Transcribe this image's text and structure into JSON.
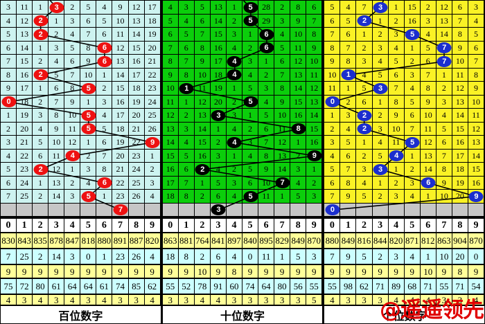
{
  "digits": [
    "0",
    "1",
    "2",
    "3",
    "4",
    "5",
    "6",
    "7",
    "8",
    "9"
  ],
  "colors": {
    "grid_line": "#000000",
    "stats_yellow": "#FFFF99",
    "stats_cyan": "#CCFFFF",
    "gray_row": "#C6C6C6",
    "watermark_red": "#E00000"
  },
  "watermark": "@遥遥领先",
  "panels": [
    {
      "footer_label": "百位数字",
      "theme": {
        "cell_bg": "#CDF3F0",
        "ball_color": "#EE1111",
        "stub_col": 3.1
      },
      "rows": [
        {
          "cells": [
            "3",
            "11",
            "1",
            "",
            "2",
            "5",
            "4",
            "9",
            "12",
            "17"
          ],
          "ball_col": 3,
          "ball_value": "3"
        },
        {
          "cells": [
            "4",
            "12",
            "",
            "1",
            "3",
            "6",
            "5",
            "10",
            "13",
            "18"
          ],
          "ball_col": 2,
          "ball_value": "2"
        },
        {
          "cells": [
            "5",
            "13",
            "",
            "2",
            "4",
            "7",
            "6",
            "11",
            "14",
            "19"
          ],
          "ball_col": 2,
          "ball_value": "2"
        },
        {
          "cells": [
            "6",
            "14",
            "1",
            "3",
            "5",
            "8",
            "",
            "12",
            "15",
            "20"
          ],
          "ball_col": 6,
          "ball_value": "6"
        },
        {
          "cells": [
            "7",
            "15",
            "2",
            "4",
            "6",
            "9",
            "",
            "13",
            "16",
            "21"
          ],
          "ball_col": 6,
          "ball_value": "6"
        },
        {
          "cells": [
            "8",
            "16",
            "",
            "5",
            "7",
            "10",
            "1",
            "14",
            "17",
            "22"
          ],
          "ball_col": 2,
          "ball_value": "2"
        },
        {
          "cells": [
            "9",
            "17",
            "1",
            "6",
            "8",
            "",
            "2",
            "15",
            "18",
            "23"
          ],
          "ball_col": 5,
          "ball_value": "5"
        },
        {
          "cells": [
            "",
            "18",
            "2",
            "7",
            "9",
            "1",
            "3",
            "16",
            "19",
            "24"
          ],
          "ball_col": 0,
          "ball_value": "0"
        },
        {
          "cells": [
            "1",
            "19",
            "3",
            "8",
            "10",
            "",
            "4",
            "17",
            "20",
            "25"
          ],
          "ball_col": 5,
          "ball_value": "5"
        },
        {
          "cells": [
            "2",
            "20",
            "4",
            "9",
            "11",
            "",
            "5",
            "18",
            "21",
            "26"
          ],
          "ball_col": 5,
          "ball_value": "5"
        },
        {
          "cells": [
            "3",
            "21",
            "5",
            "10",
            "12",
            "1",
            "6",
            "19",
            "22",
            ""
          ],
          "ball_col": 9,
          "ball_value": "9"
        },
        {
          "cells": [
            "4",
            "22",
            "6",
            "11",
            "",
            "2",
            "7",
            "20",
            "23",
            "1"
          ],
          "ball_col": 4,
          "ball_value": "4"
        },
        {
          "cells": [
            "5",
            "23",
            "",
            "12",
            "1",
            "3",
            "8",
            "21",
            "24",
            "2"
          ],
          "ball_col": 2,
          "ball_value": "2"
        },
        {
          "cells": [
            "6",
            "24",
            "1",
            "13",
            "2",
            "4",
            "",
            "22",
            "25",
            "3"
          ],
          "ball_col": 6,
          "ball_value": "6"
        },
        {
          "cells": [
            "7",
            "25",
            "2",
            "14",
            "3",
            "",
            "1",
            "23",
            "26",
            "4"
          ],
          "ball_col": 5,
          "ball_value": "5"
        }
      ],
      "gray_ball": {
        "col": 7,
        "value": "7"
      },
      "stats": [
        {
          "bg": "yellow",
          "values": [
            "830",
            "843",
            "835",
            "878",
            "847",
            "818",
            "880",
            "891",
            "887",
            "820"
          ]
        },
        {
          "bg": "cyan",
          "values": [
            "7",
            "25",
            "2",
            "14",
            "3",
            "0",
            "1",
            "23",
            "26",
            "4"
          ]
        },
        {
          "bg": "yellow",
          "values": [
            "9",
            "9",
            "9",
            "9",
            "9",
            "9",
            "9",
            "9",
            "9",
            "9"
          ]
        },
        {
          "bg": "cyan",
          "values": [
            "75",
            "72",
            "80",
            "61",
            "64",
            "64",
            "61",
            "74",
            "85",
            "62"
          ]
        },
        {
          "bg": "yellow",
          "values": [
            "4",
            "3",
            "4",
            "3",
            "4",
            "3",
            "4",
            "3",
            "3",
            "4"
          ]
        }
      ]
    },
    {
      "footer_label": "十位数字",
      "theme": {
        "cell_bg": "#0BCE0B",
        "ball_color": "#000000",
        "stub_col": 5.05
      },
      "rows": [
        {
          "cells": [
            "4",
            "3",
            "5",
            "13",
            "1",
            "",
            "28",
            "2",
            "8",
            "6"
          ],
          "ball_col": 5,
          "ball_value": "5"
        },
        {
          "cells": [
            "5",
            "4",
            "6",
            "14",
            "2",
            "",
            "29",
            "3",
            "9",
            "7"
          ],
          "ball_col": 5,
          "ball_value": "5"
        },
        {
          "cells": [
            "6",
            "5",
            "7",
            "15",
            "3",
            "1",
            "",
            "4",
            "10",
            "8"
          ],
          "ball_col": 6,
          "ball_value": "6"
        },
        {
          "cells": [
            "7",
            "6",
            "8",
            "16",
            "4",
            "2",
            "",
            "5",
            "11",
            "9"
          ],
          "ball_col": 6,
          "ball_value": "6"
        },
        {
          "cells": [
            "8",
            "7",
            "9",
            "17",
            "",
            "3",
            "1",
            "6",
            "12",
            "10"
          ],
          "ball_col": 4,
          "ball_value": "4"
        },
        {
          "cells": [
            "9",
            "8",
            "10",
            "18",
            "",
            "4",
            "2",
            "7",
            "13",
            "11"
          ],
          "ball_col": 4,
          "ball_value": "4"
        },
        {
          "cells": [
            "10",
            "",
            "11",
            "19",
            "1",
            "5",
            "3",
            "8",
            "14",
            "12"
          ],
          "ball_col": 1,
          "ball_value": "1"
        },
        {
          "cells": [
            "11",
            "1",
            "12",
            "20",
            "2",
            "",
            "4",
            "9",
            "15",
            "13"
          ],
          "ball_col": 5,
          "ball_value": "5"
        },
        {
          "cells": [
            "12",
            "2",
            "13",
            "",
            "3",
            "1",
            "5",
            "10",
            "16",
            "14"
          ],
          "ball_col": 3,
          "ball_value": "3"
        },
        {
          "cells": [
            "13",
            "3",
            "14",
            "1",
            "4",
            "2",
            "6",
            "11",
            "",
            "15"
          ],
          "ball_col": 8,
          "ball_value": "8"
        },
        {
          "cells": [
            "14",
            "4",
            "15",
            "2",
            "",
            "3",
            "7",
            "12",
            "1",
            "16"
          ],
          "ball_col": 4,
          "ball_value": "4"
        },
        {
          "cells": [
            "15",
            "5",
            "16",
            "3",
            "1",
            "4",
            "8",
            "13",
            "2",
            ""
          ],
          "ball_col": 9,
          "ball_value": "9"
        },
        {
          "cells": [
            "16",
            "6",
            "",
            "4",
            "2",
            "5",
            "9",
            "14",
            "3",
            "1"
          ],
          "ball_col": 2,
          "ball_value": "2"
        },
        {
          "cells": [
            "17",
            "7",
            "1",
            "5",
            "3",
            "6",
            "10",
            "",
            "4",
            "2"
          ],
          "ball_col": 7,
          "ball_value": "7"
        },
        {
          "cells": [
            "18",
            "8",
            "2",
            "6",
            "4",
            "",
            "11",
            "1",
            "5",
            "3"
          ],
          "ball_col": 5,
          "ball_value": "5"
        }
      ],
      "gray_ball": {
        "col": 3,
        "value": "3"
      },
      "stats": [
        {
          "bg": "yellow",
          "values": [
            "863",
            "881",
            "764",
            "841",
            "897",
            "840",
            "895",
            "829",
            "849",
            "870"
          ]
        },
        {
          "bg": "cyan",
          "values": [
            "18",
            "8",
            "2",
            "6",
            "4",
            "0",
            "11",
            "1",
            "5",
            "3"
          ]
        },
        {
          "bg": "yellow",
          "values": [
            "9",
            "9",
            "10",
            "9",
            "8",
            "9",
            "9",
            "9",
            "9",
            "9"
          ]
        },
        {
          "bg": "cyan",
          "values": [
            "55",
            "52",
            "78",
            "91",
            "60",
            "74",
            "64",
            "80",
            "56",
            "55"
          ]
        },
        {
          "bg": "yellow",
          "values": [
            "3",
            "3",
            "4",
            "4",
            "3",
            "3",
            "3",
            "3",
            "3",
            "5"
          ]
        }
      ]
    },
    {
      "footer_label": "个位数字",
      "theme": {
        "cell_bg": "#FAF225",
        "ball_color": "#1B2ECE",
        "stub_col": 3.7
      },
      "rows": [
        {
          "cells": [
            "5",
            "4",
            "7",
            "",
            "1",
            "15",
            "2",
            "12",
            "6",
            "3"
          ],
          "ball_col": 3,
          "ball_value": "3"
        },
        {
          "cells": [
            "6",
            "5",
            "",
            "1",
            "2",
            "16",
            "3",
            "13",
            "7",
            "4"
          ],
          "ball_col": 2,
          "ball_value": "2"
        },
        {
          "cells": [
            "7",
            "6",
            "1",
            "2",
            "3",
            "",
            "4",
            "14",
            "8",
            "5"
          ],
          "ball_col": 5,
          "ball_value": "5"
        },
        {
          "cells": [
            "8",
            "7",
            "2",
            "3",
            "4",
            "1",
            "5",
            "",
            "9",
            "6"
          ],
          "ball_col": 7,
          "ball_value": "7"
        },
        {
          "cells": [
            "9",
            "8",
            "3",
            "4",
            "5",
            "2",
            "6",
            "",
            "10",
            "7"
          ],
          "ball_col": 7,
          "ball_value": "7"
        },
        {
          "cells": [
            "10",
            "",
            "4",
            "5",
            "6",
            "3",
            "7",
            "1",
            "11",
            "8"
          ],
          "ball_col": 1,
          "ball_value": "1"
        },
        {
          "cells": [
            "11",
            "1",
            "5",
            "",
            "7",
            "4",
            "8",
            "2",
            "12",
            "9"
          ],
          "ball_col": 3,
          "ball_value": "3"
        },
        {
          "cells": [
            "",
            "2",
            "6",
            "1",
            "8",
            "5",
            "9",
            "3",
            "13",
            "10"
          ],
          "ball_col": 0,
          "ball_value": "0"
        },
        {
          "cells": [
            "1",
            "3",
            "",
            "2",
            "9",
            "6",
            "10",
            "4",
            "14",
            "11"
          ],
          "ball_col": 2,
          "ball_value": "2"
        },
        {
          "cells": [
            "2",
            "4",
            "",
            "3",
            "10",
            "7",
            "11",
            "5",
            "15",
            "12"
          ],
          "ball_col": 2,
          "ball_value": "2"
        },
        {
          "cells": [
            "3",
            "5",
            "1",
            "4",
            "11",
            "",
            "12",
            "6",
            "16",
            "13"
          ],
          "ball_col": 5,
          "ball_value": "5"
        },
        {
          "cells": [
            "4",
            "6",
            "2",
            "5",
            "",
            "1",
            "13",
            "7",
            "17",
            "14"
          ],
          "ball_col": 4,
          "ball_value": "4"
        },
        {
          "cells": [
            "5",
            "7",
            "3",
            "",
            "1",
            "2",
            "14",
            "8",
            "18",
            "15"
          ],
          "ball_col": 3,
          "ball_value": "3"
        },
        {
          "cells": [
            "6",
            "8",
            "4",
            "1",
            "2",
            "3",
            "",
            "9",
            "19",
            "16"
          ],
          "ball_col": 6,
          "ball_value": "6"
        },
        {
          "cells": [
            "7",
            "9",
            "5",
            "2",
            "3",
            "4",
            "1",
            "10",
            "20",
            ""
          ],
          "ball_col": 9,
          "ball_value": "9"
        }
      ],
      "gray_ball": {
        "col": 0,
        "value": "0"
      },
      "stats": [
        {
          "bg": "yellow",
          "values": [
            "880",
            "849",
            "816",
            "844",
            "820",
            "871",
            "812",
            "863",
            "904",
            "870"
          ]
        },
        {
          "bg": "cyan",
          "values": [
            "7",
            "9",
            "5",
            "2",
            "3",
            "4",
            "1",
            "10",
            "20",
            "0"
          ]
        },
        {
          "bg": "yellow",
          "values": [
            "9",
            "9",
            "9",
            "9",
            "9",
            "9",
            "10",
            "9",
            "8",
            "9"
          ]
        },
        {
          "bg": "cyan",
          "values": [
            "55",
            "98",
            "62",
            "71",
            "89",
            "68",
            "71",
            "55",
            "71",
            "54"
          ]
        },
        {
          "bg": "yellow",
          "values": [
            "4",
            "3",
            "3",
            "3",
            "4",
            "4",
            "4",
            "3",
            "3",
            "4"
          ]
        }
      ]
    }
  ]
}
